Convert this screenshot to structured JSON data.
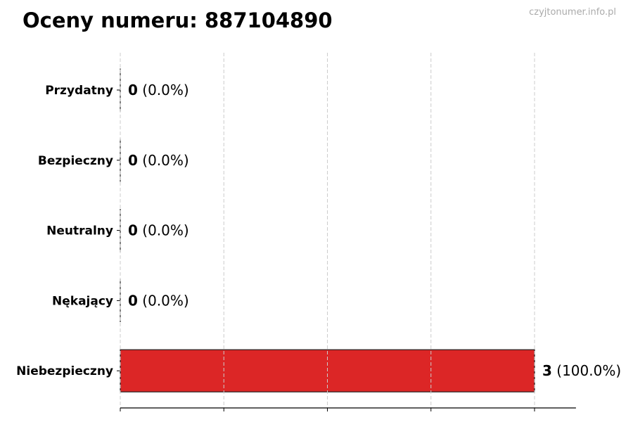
{
  "title": "Oceny numeru: 887104890",
  "watermark": "czyjtonumer.info.pl",
  "chart_data": {
    "type": "bar",
    "orientation": "horizontal",
    "title": "Oceny numeru: 887104890",
    "categories": [
      "Przydatny",
      "Bezpieczny",
      "Neutralny",
      "Nękający",
      "Niebezpieczny"
    ],
    "values": [
      0,
      0,
      0,
      0,
      3
    ],
    "data_labels": [
      {
        "count": "0",
        "pct": "(0.0%)"
      },
      {
        "count": "0",
        "pct": "(0.0%)"
      },
      {
        "count": "0",
        "pct": "(0.0%)"
      },
      {
        "count": "0",
        "pct": "(0.0%)"
      },
      {
        "count": "3",
        "pct": "(100.0%)"
      }
    ],
    "colors": [
      "#dc2626",
      "#dc2626",
      "#dc2626",
      "#dc2626",
      "#dc2626"
    ],
    "xlim": [
      0,
      3.3
    ],
    "xticks": [
      0,
      0.75,
      1.5,
      2.25,
      3
    ],
    "xtick_labels_shown": false,
    "grid": "x-dashed",
    "xlabel": "",
    "ylabel": ""
  }
}
